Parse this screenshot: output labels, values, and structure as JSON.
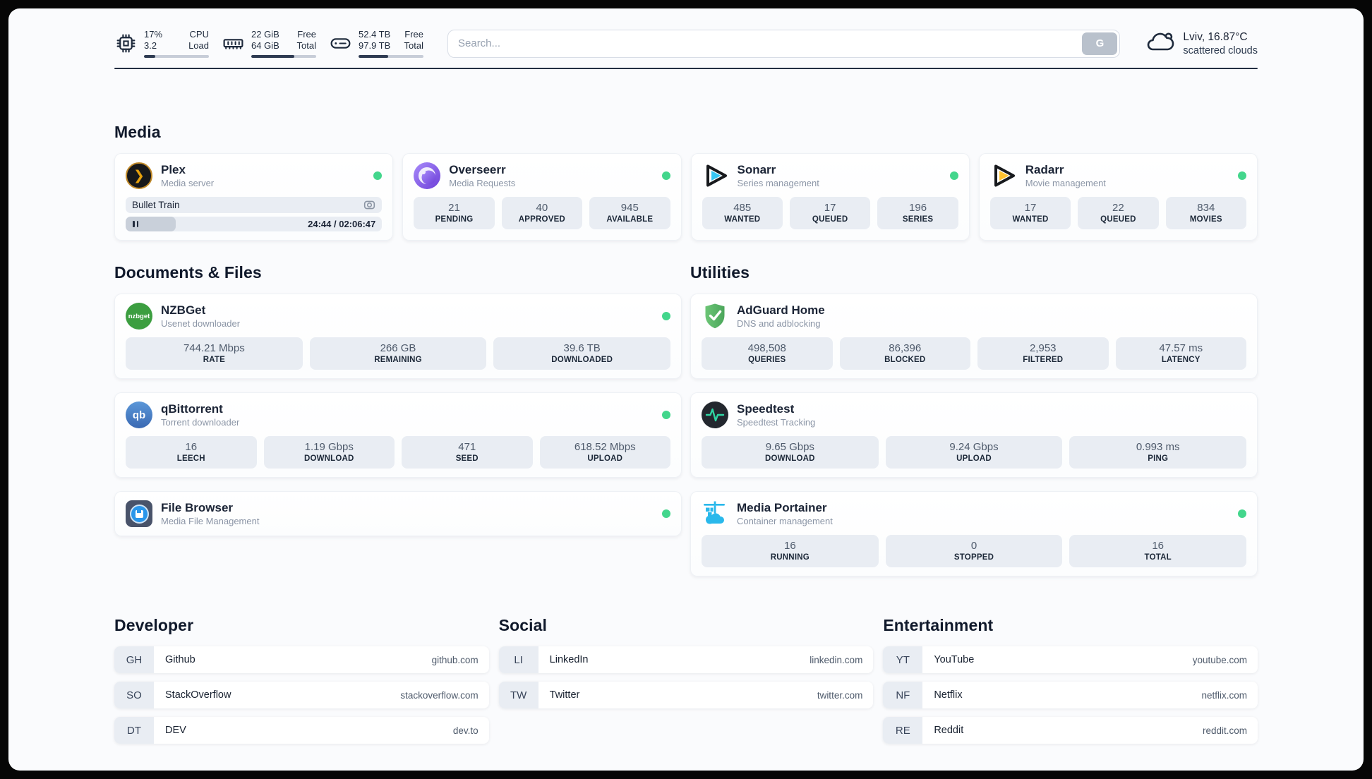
{
  "header": {
    "resources": [
      {
        "name": "cpu",
        "value_top": "17%",
        "value_bottom": "3.2",
        "label_top": "CPU",
        "label_bottom": "Load",
        "progress_pct": 17
      },
      {
        "name": "memory",
        "value_top": "22 GiB",
        "value_bottom": "64 GiB",
        "label_top": "Free",
        "label_bottom": "Total",
        "progress_pct": 66
      },
      {
        "name": "disk",
        "value_top": "52.4 TB",
        "value_bottom": "97.9 TB",
        "label_top": "Free",
        "label_bottom": "Total",
        "progress_pct": 46
      }
    ],
    "search": {
      "placeholder": "Search...",
      "button_label": "G"
    },
    "weather": {
      "location_temp": "Lviv, 16.87°C",
      "condition": "scattered clouds"
    }
  },
  "sections": {
    "media": "Media",
    "documents": "Documents & Files",
    "utilities": "Utilities"
  },
  "services": {
    "plex": {
      "name": "Plex",
      "description": "Media server",
      "online": true,
      "now_playing": {
        "title": "Bullet Train",
        "time": "24:44 / 02:06:47",
        "progress_pct": 19.5
      }
    },
    "overseerr": {
      "name": "Overseerr",
      "description": "Media Requests",
      "online": true,
      "stats": [
        {
          "value": "21",
          "label": "PENDING"
        },
        {
          "value": "40",
          "label": "APPROVED"
        },
        {
          "value": "945",
          "label": "AVAILABLE"
        }
      ]
    },
    "sonarr": {
      "name": "Sonarr",
      "description": "Series management",
      "online": true,
      "stats": [
        {
          "value": "485",
          "label": "WANTED"
        },
        {
          "value": "17",
          "label": "QUEUED"
        },
        {
          "value": "196",
          "label": "SERIES"
        }
      ]
    },
    "radarr": {
      "name": "Radarr",
      "description": "Movie management",
      "online": true,
      "stats": [
        {
          "value": "17",
          "label": "WANTED"
        },
        {
          "value": "22",
          "label": "QUEUED"
        },
        {
          "value": "834",
          "label": "MOVIES"
        }
      ]
    },
    "nzbget": {
      "name": "NZBGet",
      "description": "Usenet downloader",
      "online": true,
      "stats": [
        {
          "value": "744.21 Mbps",
          "label": "RATE"
        },
        {
          "value": "266 GB",
          "label": "REMAINING"
        },
        {
          "value": "39.6 TB",
          "label": "DOWNLOADED"
        }
      ]
    },
    "qbittorrent": {
      "name": "qBittorrent",
      "description": "Torrent downloader",
      "online": true,
      "stats": [
        {
          "value": "16",
          "label": "LEECH"
        },
        {
          "value": "1.19 Gbps",
          "label": "DOWNLOAD"
        },
        {
          "value": "471",
          "label": "SEED"
        },
        {
          "value": "618.52 Mbps",
          "label": "UPLOAD"
        }
      ]
    },
    "filebrowser": {
      "name": "File Browser",
      "description": "Media File Management",
      "online": true
    },
    "adguard": {
      "name": "AdGuard Home",
      "description": "DNS and adblocking",
      "stats": [
        {
          "value": "498,508",
          "label": "QUERIES"
        },
        {
          "value": "86,396",
          "label": "BLOCKED"
        },
        {
          "value": "2,953",
          "label": "FILTERED"
        },
        {
          "value": "47.57 ms",
          "label": "LATENCY"
        }
      ]
    },
    "speedtest": {
      "name": "Speedtest",
      "description": "Speedtest Tracking",
      "stats": [
        {
          "value": "9.65 Gbps",
          "label": "DOWNLOAD"
        },
        {
          "value": "9.24 Gbps",
          "label": "UPLOAD"
        },
        {
          "value": "0.993 ms",
          "label": "PING"
        }
      ]
    },
    "portainer": {
      "name": "Media Portainer",
      "description": "Container management",
      "online": true,
      "stats": [
        {
          "value": "16",
          "label": "RUNNING"
        },
        {
          "value": "0",
          "label": "STOPPED"
        },
        {
          "value": "16",
          "label": "TOTAL"
        }
      ]
    }
  },
  "bookmarks": [
    {
      "title": "Developer",
      "items": [
        {
          "abbr": "GH",
          "name": "Github",
          "domain": "github.com"
        },
        {
          "abbr": "SO",
          "name": "StackOverflow",
          "domain": "stackoverflow.com"
        },
        {
          "abbr": "DT",
          "name": "DEV",
          "domain": "dev.to"
        }
      ]
    },
    {
      "title": "Social",
      "items": [
        {
          "abbr": "LI",
          "name": "LinkedIn",
          "domain": "linkedin.com"
        },
        {
          "abbr": "TW",
          "name": "Twitter",
          "domain": "twitter.com"
        }
      ]
    },
    {
      "title": "Entertainment",
      "items": [
        {
          "abbr": "YT",
          "name": "YouTube",
          "domain": "youtube.com"
        },
        {
          "abbr": "NF",
          "name": "Netflix",
          "domain": "netflix.com"
        },
        {
          "abbr": "RE",
          "name": "Reddit",
          "domain": "reddit.com"
        }
      ]
    }
  ],
  "colors": {
    "status_online": "#43d68c",
    "plex_accent": "#e5a00d",
    "sonarr_accent": "#36c6f4",
    "radarr_accent": "#ffc230",
    "nzbget_accent": "#3c9e40",
    "qbittorrent_accent": "#4178be",
    "adguard_accent": "#57c163",
    "speedtest_accent": "#2fd6a3",
    "portainer_accent": "#29b8eb",
    "text_dark": "#1b2436"
  }
}
